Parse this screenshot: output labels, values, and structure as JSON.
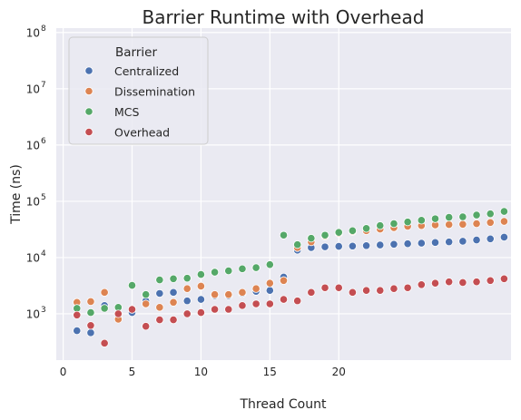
{
  "chart_data": {
    "type": "scatter",
    "title": "Barrier Runtime with Overhead",
    "xlabel": "Thread Count",
    "ylabel": "Time (ns)",
    "xlim": [
      -0.5,
      32.5
    ],
    "ylim": [
      150,
      120000000
    ],
    "yscale": "log",
    "grid": true,
    "legend_title": "Barrier",
    "legend_position": "top-left",
    "x_ticks": [
      0,
      5,
      10,
      15,
      20
    ],
    "y_ticks": [
      {
        "value": 1000,
        "base": "10",
        "exp": "3"
      },
      {
        "value": 10000,
        "base": "10",
        "exp": "4"
      },
      {
        "value": 100000,
        "base": "10",
        "exp": "5"
      },
      {
        "value": 1000000,
        "base": "10",
        "exp": "6"
      },
      {
        "value": 10000000,
        "base": "10",
        "exp": "7"
      },
      {
        "value": 100000000,
        "base": "10",
        "exp": "8"
      }
    ],
    "series": [
      {
        "name": "Centralized",
        "color": "#4c72b0",
        "x": [
          1,
          2,
          3,
          4,
          5,
          6,
          7,
          8,
          9,
          10,
          11,
          12,
          13,
          14,
          15,
          16,
          17,
          18,
          19,
          20,
          21,
          22,
          23,
          24,
          25,
          26,
          27,
          28,
          29,
          30,
          31,
          32
        ],
        "y": [
          500,
          460,
          1400,
          900,
          1050,
          1700,
          2300,
          2400,
          1700,
          1800,
          2100,
          2100,
          2300,
          2500,
          2600,
          4500,
          13500,
          15000,
          15500,
          15800,
          16000,
          16300,
          16700,
          17200,
          17600,
          18000,
          18500,
          19000,
          19500,
          20500,
          21500,
          23000
        ]
      },
      {
        "name": "Dissemination",
        "color": "#dd8452",
        "x": [
          1,
          2,
          3,
          4,
          5,
          6,
          7,
          8,
          9,
          10,
          11,
          12,
          13,
          14,
          15,
          16,
          17,
          18,
          19,
          20,
          21,
          22,
          23,
          24,
          25,
          26,
          27,
          28,
          29,
          30,
          31,
          32
        ],
        "y": [
          1600,
          1650,
          2400,
          800,
          1200,
          1500,
          1300,
          1600,
          2800,
          3100,
          2200,
          2200,
          2400,
          2800,
          3500,
          3900,
          15000,
          19000,
          24000,
          27000,
          29000,
          30000,
          32000,
          34000,
          36000,
          37000,
          38000,
          38500,
          39000,
          40000,
          42000,
          44000
        ]
      },
      {
        "name": "MCS",
        "color": "#55a868",
        "x": [
          1,
          2,
          3,
          4,
          5,
          6,
          7,
          8,
          9,
          10,
          11,
          12,
          13,
          14,
          15,
          16,
          17,
          18,
          19,
          20,
          21,
          22,
          23,
          24,
          25,
          26,
          27,
          28,
          29,
          30,
          31,
          32
        ],
        "y": [
          1250,
          1050,
          1250,
          1300,
          3200,
          2200,
          4000,
          4200,
          4300,
          5000,
          5500,
          5800,
          6300,
          6600,
          7500,
          25000,
          17000,
          22000,
          25000,
          28000,
          30000,
          33000,
          37000,
          40000,
          43000,
          46000,
          49000,
          52000,
          53000,
          57000,
          60000,
          66000
        ]
      },
      {
        "name": "Overhead",
        "color": "#c44e52",
        "x": [
          1,
          2,
          3,
          4,
          5,
          6,
          7,
          8,
          9,
          10,
          11,
          12,
          13,
          14,
          15,
          16,
          17,
          18,
          19,
          20,
          21,
          22,
          23,
          24,
          25,
          26,
          27,
          28,
          29,
          30,
          31,
          32
        ],
        "y": [
          950,
          620,
          300,
          1000,
          1200,
          600,
          780,
          780,
          1000,
          1050,
          1200,
          1200,
          1400,
          1500,
          1500,
          1800,
          1700,
          2400,
          2900,
          2900,
          2400,
          2600,
          2600,
          2800,
          2900,
          3300,
          3500,
          3700,
          3600,
          3700,
          3900,
          4200
        ]
      }
    ]
  }
}
